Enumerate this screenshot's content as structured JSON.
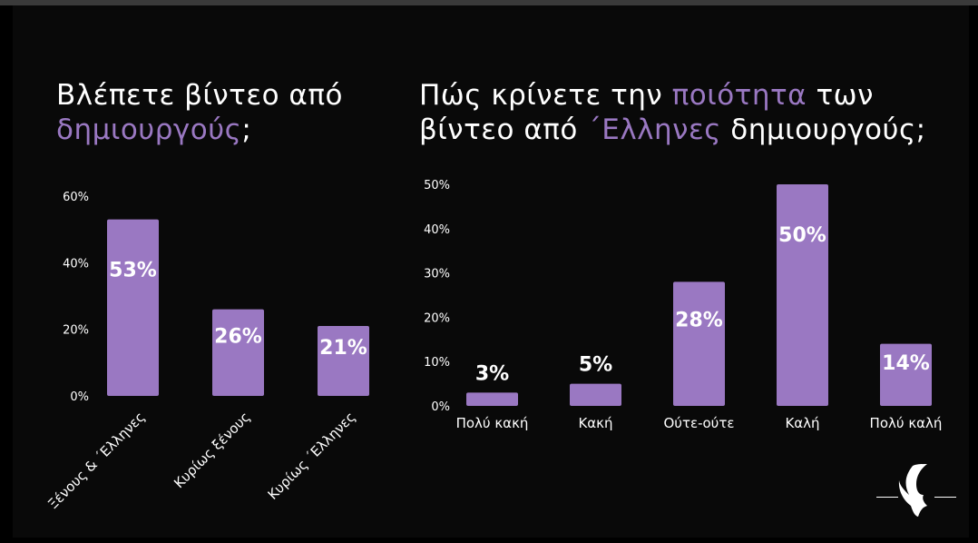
{
  "title_left": {
    "line1": "Βλέπετε βίντεο από",
    "line2_accent": "δημιουργούς",
    "line2_rest": ";"
  },
  "title_right": {
    "line1_a": "Πώς κρίνετε την ",
    "line1_accent": "ποιότητα",
    "line1_b": " των",
    "line2_a": "βίντεο από ",
    "line2_accent": "΄Ελληνες",
    "line2_b": " δημιουργούς;"
  },
  "colors": {
    "bar": "#9a78c2",
    "accent": "#9a78c2",
    "background": "#000000",
    "text": "#ffffff"
  },
  "logo": {
    "icon": "wing-head-logo-icon"
  },
  "chart_data": [
    {
      "type": "bar",
      "categories": [
        "Ξένους & ΄Ελληνες",
        "Κυρίως ξένους",
        "Κυρίως ΄Ελληνες"
      ],
      "values": [
        53,
        26,
        21
      ],
      "value_labels": [
        "53%",
        "26%",
        "21%"
      ],
      "ylim": [
        0,
        60
      ],
      "yticks": [
        0,
        20,
        40,
        60
      ],
      "ytick_labels": [
        "0%",
        "20%",
        "40%",
        "60%"
      ],
      "grid": false
    },
    {
      "type": "bar",
      "categories": [
        "Πολύ κακή",
        "Κακή",
        "Ούτε-ούτε",
        "Καλή",
        "Πολύ καλή"
      ],
      "values": [
        3,
        5,
        28,
        50,
        14
      ],
      "value_labels": [
        "3%",
        "5%",
        "28%",
        "50%",
        "14%"
      ],
      "ylim": [
        0,
        50
      ],
      "yticks": [
        0,
        10,
        20,
        30,
        40,
        50
      ],
      "ytick_labels": [
        "0%",
        "10%",
        "20%",
        "30%",
        "40%",
        "50%"
      ],
      "grid": false
    }
  ]
}
